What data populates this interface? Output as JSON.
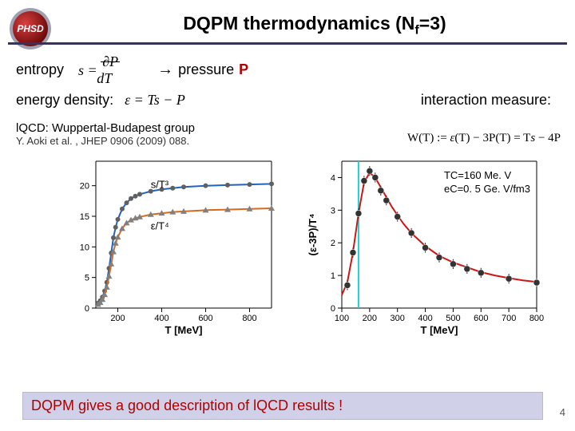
{
  "title": "DQPM thermodynamics (Nf=3)",
  "logo_text": "PHSD",
  "logo_bg": "#8a0f0f",
  "logo_ring": "#b8b8c0",
  "row1": {
    "entropy": "entropy",
    "formula_s": "s = ∂P/∂T",
    "arrow": "→",
    "pressure": "pressure",
    "pressure_var": "P"
  },
  "row2": {
    "energy": "energy density:",
    "formula_eps": "ε = Ts − P",
    "interaction": "interaction measure:"
  },
  "row3": {
    "lqcd": "lQCD: Wuppertal-Budapest group",
    "cite": "Y. Aoki et al. , JHEP 0906 (2009) 088.",
    "WT": "W(T) := ε(T) − 3P(T) = Ts − 4P"
  },
  "left_chart": {
    "type": "line",
    "title": "",
    "xlabel": "T [MeV]",
    "ylabel": "",
    "xlim": [
      100,
      900
    ],
    "ylim": [
      0,
      24
    ],
    "xticks": [
      200,
      400,
      600,
      800
    ],
    "yticks": [
      0,
      5,
      10,
      15,
      20
    ],
    "label_fontsize": 11,
    "series": [
      {
        "name": "s/T³",
        "label": "s/T³",
        "color_line": "#1f65c0",
        "color_marker": "#606060",
        "marker": "circle",
        "marker_size": 4,
        "line_width": 2,
        "x": [
          110,
          120,
          130,
          140,
          150,
          160,
          170,
          180,
          190,
          200,
          220,
          240,
          260,
          280,
          300,
          350,
          400,
          450,
          500,
          600,
          700,
          800,
          900
        ],
        "y": [
          0.8,
          1.2,
          1.8,
          2.8,
          4.2,
          6.5,
          9.0,
          11.5,
          13.2,
          14.5,
          16.2,
          17.2,
          17.9,
          18.3,
          18.6,
          19.1,
          19.4,
          19.6,
          19.8,
          20.0,
          20.1,
          20.2,
          20.3
        ]
      },
      {
        "name": "ε/T⁴",
        "label": "ε/T⁴",
        "color_line": "#d86a1e",
        "color_marker": "#808080",
        "marker": "triangle",
        "marker_size": 4,
        "line_width": 2,
        "x": [
          110,
          120,
          130,
          140,
          150,
          160,
          170,
          180,
          190,
          200,
          220,
          240,
          260,
          280,
          300,
          350,
          400,
          450,
          500,
          600,
          700,
          800,
          900
        ],
        "y": [
          0.6,
          0.9,
          1.4,
          2.2,
          3.4,
          5.2,
          7.2,
          9.2,
          10.6,
          11.6,
          13.0,
          13.9,
          14.4,
          14.7,
          14.9,
          15.3,
          15.5,
          15.7,
          15.8,
          16.0,
          16.1,
          16.2,
          16.3
        ]
      }
    ],
    "background_color": "#ffffff",
    "axis_color": "#000000"
  },
  "right_chart": {
    "type": "scatter+line",
    "xlabel": "T [MeV]",
    "ylabel": "(ε-3P)/T⁴",
    "xlim": [
      100,
      800
    ],
    "ylim": [
      0,
      4.5
    ],
    "xticks": [
      100,
      200,
      300,
      400,
      500,
      600,
      700,
      800
    ],
    "yticks": [
      0,
      1,
      2,
      3,
      4
    ],
    "label_fontsize": 11,
    "Tc_line": {
      "x": 160,
      "color": "#22d0d0",
      "width": 2
    },
    "line": {
      "color": "#d01515",
      "width": 2,
      "x": [
        100,
        120,
        140,
        160,
        180,
        200,
        220,
        240,
        260,
        280,
        300,
        320,
        350,
        400,
        450,
        500,
        550,
        600,
        650,
        700,
        750,
        800
      ],
      "y": [
        0.4,
        0.8,
        1.7,
        2.9,
        3.85,
        4.15,
        4.0,
        3.7,
        3.4,
        3.1,
        2.85,
        2.6,
        2.3,
        1.9,
        1.6,
        1.4,
        1.25,
        1.1,
        1.0,
        0.92,
        0.85,
        0.8
      ]
    },
    "markers": {
      "color": "#202020",
      "style": "circle",
      "size": 4,
      "error_bar": true,
      "error_size": 0.15,
      "x": [
        120,
        140,
        160,
        180,
        200,
        220,
        240,
        260,
        300,
        350,
        400,
        450,
        500,
        550,
        600,
        700,
        800
      ],
      "y": [
        0.7,
        1.7,
        2.9,
        3.9,
        4.2,
        4.0,
        3.6,
        3.3,
        2.8,
        2.3,
        1.85,
        1.55,
        1.35,
        1.2,
        1.08,
        0.9,
        0.78
      ]
    },
    "background_color": "#ffffff",
    "axis_color": "#000000",
    "annot": {
      "tc": "TC=160 Me. V",
      "ec": "eC=0. 5 Ge. V/fm3"
    }
  },
  "bottom": "DQPM gives a good description of  lQCD results !",
  "slide_num": "4"
}
